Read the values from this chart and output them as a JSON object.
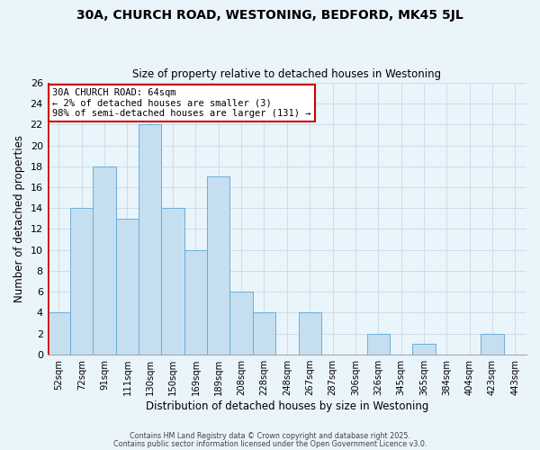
{
  "title": "30A, CHURCH ROAD, WESTONING, BEDFORD, MK45 5JL",
  "subtitle": "Size of property relative to detached houses in Westoning",
  "xlabel": "Distribution of detached houses by size in Westoning",
  "ylabel": "Number of detached properties",
  "bar_color": "#c5dff0",
  "bar_edge_color": "#6baed6",
  "highlight_color": "#cc0000",
  "categories": [
    "52sqm",
    "72sqm",
    "91sqm",
    "111sqm",
    "130sqm",
    "150sqm",
    "169sqm",
    "189sqm",
    "208sqm",
    "228sqm",
    "248sqm",
    "267sqm",
    "287sqm",
    "306sqm",
    "326sqm",
    "345sqm",
    "365sqm",
    "384sqm",
    "404sqm",
    "423sqm",
    "443sqm"
  ],
  "values": [
    4,
    14,
    18,
    13,
    22,
    14,
    10,
    17,
    6,
    4,
    0,
    4,
    0,
    0,
    2,
    0,
    1,
    0,
    0,
    2,
    0
  ],
  "ylim": [
    0,
    26
  ],
  "yticks": [
    0,
    2,
    4,
    6,
    8,
    10,
    12,
    14,
    16,
    18,
    20,
    22,
    24,
    26
  ],
  "annotation_title": "30A CHURCH ROAD: 64sqm",
  "annotation_line1": "← 2% of detached houses are smaller (3)",
  "annotation_line2": "98% of semi-detached houses are larger (131) →",
  "footnote1": "Contains HM Land Registry data © Crown copyright and database right 2025.",
  "footnote2": "Contains public sector information licensed under the Open Government Licence v3.0.",
  "grid_color": "#ccdee8",
  "background_color": "#eaf4fb"
}
